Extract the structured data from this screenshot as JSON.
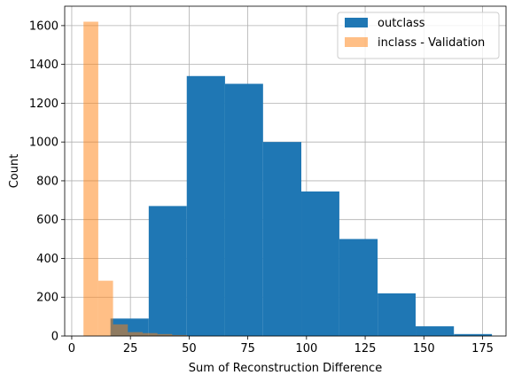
{
  "chart_data": {
    "type": "bar",
    "title": "",
    "xlabel": "Sum of Reconstruction Difference",
    "ylabel": "Count",
    "xlim": [
      -3,
      185
    ],
    "ylim": [
      0,
      1700
    ],
    "x_ticks": [
      0,
      25,
      50,
      75,
      100,
      125,
      150,
      175
    ],
    "y_ticks": [
      0,
      200,
      400,
      600,
      800,
      1000,
      1200,
      1400,
      1600
    ],
    "grid": true,
    "legend_position": "top-right",
    "series": [
      {
        "name": "outclass",
        "color": "#1f77b4",
        "alpha": 1.0,
        "bins": [
          {
            "x0": 16.5,
            "x1": 32.8,
            "count": 90
          },
          {
            "x0": 32.8,
            "x1": 49.0,
            "count": 670
          },
          {
            "x0": 49.0,
            "x1": 65.3,
            "count": 1340
          },
          {
            "x0": 65.3,
            "x1": 81.5,
            "count": 1300
          },
          {
            "x0": 81.5,
            "x1": 97.8,
            "count": 1000
          },
          {
            "x0": 97.8,
            "x1": 114.0,
            "count": 745
          },
          {
            "x0": 114.0,
            "x1": 130.3,
            "count": 500
          },
          {
            "x0": 130.3,
            "x1": 146.5,
            "count": 220
          },
          {
            "x0": 146.5,
            "x1": 162.8,
            "count": 50
          },
          {
            "x0": 162.8,
            "x1": 179.0,
            "count": 10
          }
        ]
      },
      {
        "name": "inclass - Validation",
        "color": "#ff7f0e",
        "alpha": 0.5,
        "bins": [
          {
            "x0": 5.0,
            "x1": 11.3,
            "count": 1620
          },
          {
            "x0": 11.3,
            "x1": 17.6,
            "count": 285
          },
          {
            "x0": 17.6,
            "x1": 23.9,
            "count": 60
          },
          {
            "x0": 23.9,
            "x1": 30.2,
            "count": 20
          },
          {
            "x0": 30.2,
            "x1": 36.5,
            "count": 15
          },
          {
            "x0": 36.5,
            "x1": 42.8,
            "count": 10
          },
          {
            "x0": 42.8,
            "x1": 49.1,
            "count": 5
          }
        ]
      }
    ]
  }
}
